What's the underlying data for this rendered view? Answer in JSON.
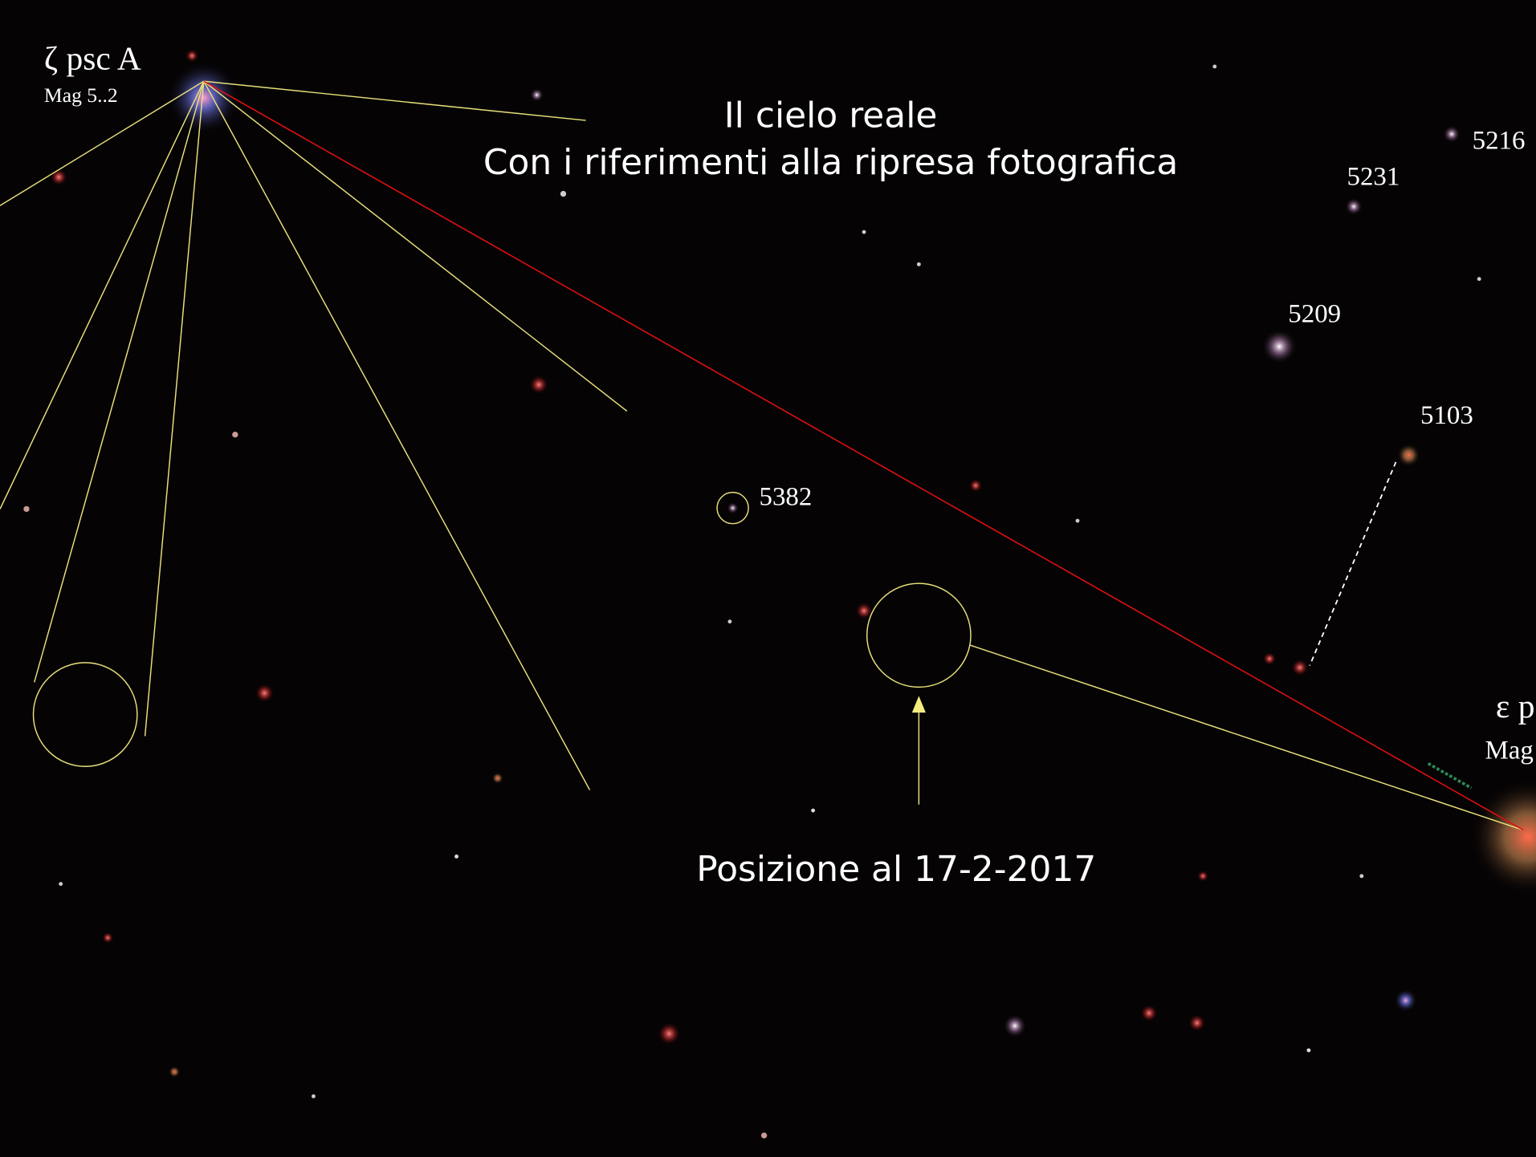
{
  "title": {
    "line1": "Il cielo reale",
    "line2": "Con i riferimenti alla ripresa fotografica"
  },
  "stars": {
    "zeta": {
      "name": "ζ psc A",
      "mag": "Mag 5..2"
    },
    "epsilon": {
      "name": "ε p",
      "mag": "Mag"
    },
    "labels": [
      "5216",
      "5231",
      "5209",
      "5103",
      "5382"
    ]
  },
  "position_label": "Posizione al 17-2-2017"
}
